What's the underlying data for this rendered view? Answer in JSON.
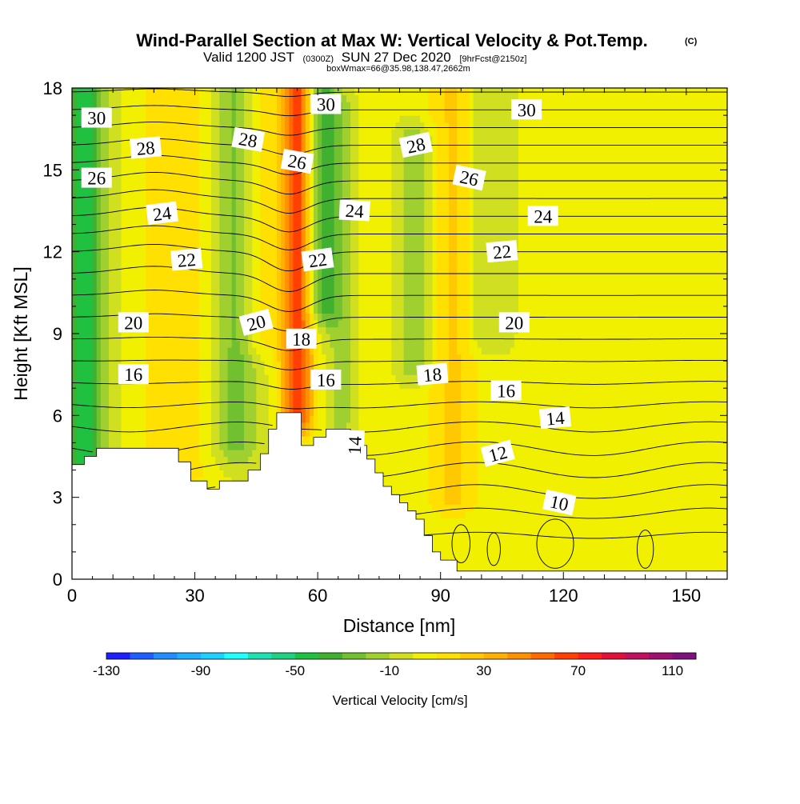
{
  "chart_data": {
    "type": "heatmap",
    "title": "Wind-Parallel Section at Max W: Vertical Velocity & Pot.Temp.",
    "title_mark": "(C)",
    "subtitle": {
      "prefix": "Valid 1200 JST",
      "utc": "(0300Z)",
      "date": "SUN 27 Dec 2020",
      "fcst": "[9hrFcst@2150z]"
    },
    "box_note": "boxWmax=66@35.98,138.47,2662m",
    "xlabel": "Distance [nm]",
    "ylabel": "Height [Kft MSL]",
    "xlim": [
      0,
      160
    ],
    "ylim": [
      0,
      18
    ],
    "x_ticks": [
      0,
      30,
      60,
      90,
      120,
      150
    ],
    "y_ticks": [
      0,
      3,
      6,
      9,
      12,
      15,
      18
    ],
    "x_tick_labels": [
      "0",
      "30",
      "60",
      "90",
      "120",
      "150"
    ],
    "y_tick_labels": [
      "0",
      "3",
      "6",
      "9",
      "12",
      "15",
      "18"
    ],
    "colorbar": {
      "label": "Vertical Velocity [cm/s]",
      "min": -130,
      "max": 120,
      "step": 10,
      "tick_labels": [
        "-130",
        "-90",
        "-50",
        "-10",
        "30",
        "70",
        "110"
      ],
      "tick_values": [
        -130,
        -90,
        -50,
        -10,
        30,
        70,
        110
      ],
      "colors": [
        "#1f1fff",
        "#1f5fff",
        "#1f8fff",
        "#1fb0ff",
        "#1fd0ff",
        "#1fffff",
        "#1fe0b0",
        "#1fd080",
        "#20c040",
        "#40b030",
        "#70c030",
        "#a0d030",
        "#d0e020",
        "#f0f000",
        "#ffe000",
        "#ffc800",
        "#ffb000",
        "#ff9000",
        "#ff6a00",
        "#ff4000",
        "#ff1f1f",
        "#e0103a",
        "#c01060",
        "#a01070",
        "#801080"
      ]
    },
    "velocity_features": [
      {
        "x": 3,
        "z0": 0,
        "z1": 18,
        "w": -45,
        "width": 5
      },
      {
        "x": 25,
        "z0": 4,
        "z1": 18,
        "w": 18,
        "width": 9
      },
      {
        "x": 40,
        "z0": 5,
        "z1": 18,
        "w": -25,
        "width": 5
      },
      {
        "x": 46,
        "z0": 9,
        "z1": 18,
        "w": 15,
        "width": 5
      },
      {
        "x": 55,
        "z0": 6,
        "z1": 18,
        "w": 66,
        "width": 4
      },
      {
        "x": 61,
        "z0": 10,
        "z1": 18,
        "w": -35,
        "width": 4
      },
      {
        "x": 66,
        "z0": 6,
        "z1": 17,
        "w": -15,
        "width": 4
      },
      {
        "x": 74,
        "z0": 6,
        "z1": 18,
        "w": 8,
        "width": 5
      },
      {
        "x": 84,
        "z0": 8,
        "z1": 16,
        "w": -20,
        "width": 5
      },
      {
        "x": 93,
        "z0": 3,
        "z1": 18,
        "w": 22,
        "width": 7
      },
      {
        "x": 100,
        "z0": 9,
        "z1": 18,
        "w": -15,
        "width": 4
      },
      {
        "x": 120,
        "z0": 1,
        "z1": 6,
        "w": 10,
        "width": 10
      }
    ],
    "theta_contours": {
      "step": 1,
      "min": 9,
      "max": 31,
      "labels": [
        {
          "text": "30",
          "x": 6,
          "z": 16.9,
          "rot": 0
        },
        {
          "text": "30",
          "x": 62,
          "z": 17.4,
          "rot": 0
        },
        {
          "text": "30",
          "x": 111,
          "z": 17.2,
          "rot": 0
        },
        {
          "text": "28",
          "x": 18,
          "z": 15.8,
          "rot": -5
        },
        {
          "text": "28",
          "x": 43,
          "z": 16.1,
          "rot": 10
        },
        {
          "text": "28",
          "x": 84,
          "z": 15.9,
          "rot": -12
        },
        {
          "text": "26",
          "x": 6,
          "z": 14.7,
          "rot": 0
        },
        {
          "text": "26",
          "x": 55,
          "z": 15.3,
          "rot": 10
        },
        {
          "text": "26",
          "x": 97,
          "z": 14.7,
          "rot": 12
        },
        {
          "text": "24",
          "x": 22,
          "z": 13.4,
          "rot": -7
        },
        {
          "text": "24",
          "x": 69,
          "z": 13.5,
          "rot": 3
        },
        {
          "text": "24",
          "x": 115,
          "z": 13.3,
          "rot": 0
        },
        {
          "text": "22",
          "x": 28,
          "z": 11.7,
          "rot": -5
        },
        {
          "text": "22",
          "x": 60,
          "z": 11.7,
          "rot": -8
        },
        {
          "text": "22",
          "x": 105,
          "z": 12.0,
          "rot": -5
        },
        {
          "text": "20",
          "x": 15,
          "z": 9.4,
          "rot": 0
        },
        {
          "text": "20",
          "x": 45,
          "z": 9.4,
          "rot": -15
        },
        {
          "text": "20",
          "x": 108,
          "z": 9.4,
          "rot": 0
        },
        {
          "text": "18",
          "x": 56,
          "z": 8.8,
          "rot": 0
        },
        {
          "text": "18",
          "x": 88,
          "z": 7.5,
          "rot": -5
        },
        {
          "text": "16",
          "x": 15,
          "z": 7.5,
          "rot": 0
        },
        {
          "text": "16",
          "x": 62,
          "z": 7.3,
          "rot": 0
        },
        {
          "text": "16",
          "x": 106,
          "z": 6.9,
          "rot": 0
        },
        {
          "text": "14",
          "x": 118,
          "z": 5.9,
          "rot": -5
        },
        {
          "text": "14",
          "x": 69,
          "z": 4.9,
          "rot": -88
        },
        {
          "text": "12",
          "x": 104,
          "z": 4.6,
          "rot": -15
        },
        {
          "text": "10",
          "x": 119,
          "z": 2.8,
          "rot": 12
        }
      ]
    },
    "terrain": [
      [
        0,
        4.2
      ],
      [
        3,
        4.2
      ],
      [
        3,
        4.5
      ],
      [
        6,
        4.5
      ],
      [
        6,
        4.8
      ],
      [
        26,
        4.8
      ],
      [
        26,
        4.3
      ],
      [
        29,
        4.3
      ],
      [
        29,
        3.6
      ],
      [
        33,
        3.6
      ],
      [
        33,
        3.3
      ],
      [
        36,
        3.3
      ],
      [
        36,
        3.6
      ],
      [
        43,
        3.6
      ],
      [
        43,
        4.0
      ],
      [
        46,
        4.0
      ],
      [
        46,
        4.6
      ],
      [
        48,
        4.6
      ],
      [
        48,
        5.5
      ],
      [
        50,
        5.5
      ],
      [
        50,
        6.1
      ],
      [
        56,
        6.1
      ],
      [
        56,
        4.9
      ],
      [
        59,
        4.9
      ],
      [
        59,
        5.2
      ],
      [
        62,
        5.2
      ],
      [
        62,
        5.5
      ],
      [
        68,
        5.5
      ],
      [
        68,
        5.2
      ],
      [
        70,
        5.2
      ],
      [
        70,
        4.9
      ],
      [
        72,
        4.9
      ],
      [
        72,
        4.4
      ],
      [
        74,
        4.4
      ],
      [
        74,
        3.9
      ],
      [
        76,
        3.9
      ],
      [
        76,
        3.4
      ],
      [
        78,
        3.4
      ],
      [
        78,
        3.1
      ],
      [
        80,
        3.1
      ],
      [
        80,
        2.8
      ],
      [
        82,
        2.8
      ],
      [
        82,
        2.5
      ],
      [
        84,
        2.5
      ],
      [
        84,
        2.2
      ],
      [
        86,
        2.2
      ],
      [
        86,
        1.6
      ],
      [
        88,
        1.6
      ],
      [
        88,
        1.0
      ],
      [
        90,
        1.0
      ],
      [
        90,
        0.7
      ],
      [
        94,
        0.7
      ],
      [
        94,
        0.3
      ],
      [
        160,
        0.3
      ]
    ]
  }
}
